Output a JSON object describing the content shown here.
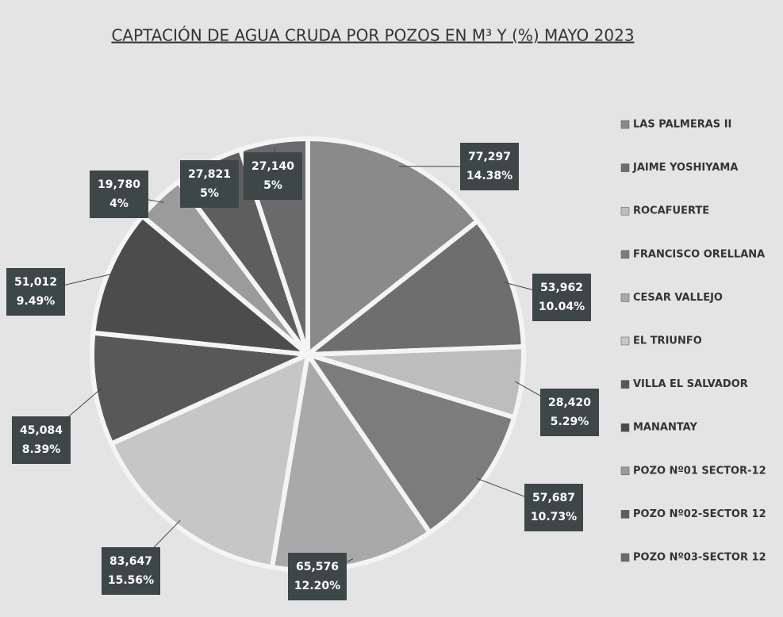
{
  "chart_data": {
    "type": "pie",
    "title": "CAPTACIÓN DE AGUA CRUDA POR POZOS EN M³ Y (%) MAYO 2023",
    "categories": [
      "LAS PALMERAS II",
      "JAIME YOSHIYAMA",
      "ROCAFUERTE",
      "FRANCISCO ORELLANA",
      "CESAR VALLEJO",
      "EL TRIUNFO",
      "VILLA EL SALVADOR",
      "MANANTAY",
      "POZO Nº01 SECTOR-12",
      "POZO Nº02-SECTOR 12",
      "POZO Nº03-SECTOR 12"
    ],
    "values": [
      77297,
      53962,
      28420,
      57687,
      65576,
      83647,
      45084,
      51012,
      19780,
      27821,
      27140
    ],
    "value_labels": [
      "77,297",
      "53,962",
      "28,420",
      "57,687",
      "65,576",
      "83,647",
      "45,084",
      "51,012",
      "19,780",
      "27,821",
      "27,140"
    ],
    "percentages": [
      14.38,
      10.04,
      5.29,
      10.73,
      12.2,
      15.56,
      8.39,
      9.49,
      4,
      5,
      5
    ],
    "percentage_labels": [
      "14.38%",
      "10.04%",
      "5.29%",
      "10.73%",
      "12.20%",
      "15.56%",
      "8.39%",
      "9.49%",
      "4%",
      "5%",
      "5%"
    ],
    "colors": [
      "#8a8a8a",
      "#6e6e6e",
      "#bdbdbd",
      "#7c7c7c",
      "#a9a9a9",
      "#c6c6c6",
      "#585858",
      "#4c4c4c",
      "#9b9b9b",
      "#5e5e5e",
      "#6a6a6a"
    ],
    "legend": "right"
  }
}
